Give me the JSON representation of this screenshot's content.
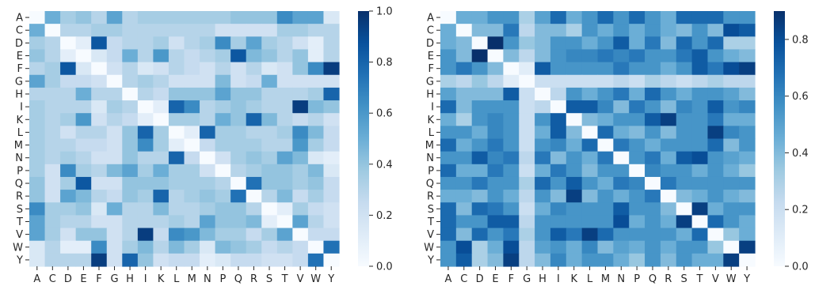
{
  "chart_data": [
    {
      "type": "heatmap",
      "colormap": "Blues",
      "x_labels": [
        "A",
        "C",
        "D",
        "E",
        "F",
        "G",
        "H",
        "I",
        "K",
        "L",
        "M",
        "N",
        "P",
        "Q",
        "R",
        "S",
        "T",
        "V",
        "W",
        "Y"
      ],
      "y_labels": [
        "A",
        "C",
        "D",
        "E",
        "F",
        "G",
        "H",
        "I",
        "K",
        "L",
        "M",
        "N",
        "P",
        "Q",
        "R",
        "S",
        "T",
        "V",
        "W",
        "Y"
      ],
      "vmin": 0.0,
      "vmax": 1.0,
      "colorbar_ticks": [
        "0.0",
        "0.2",
        "0.4",
        "0.6",
        "0.8",
        "1.0"
      ],
      "colorbar_tick_values": [
        0.0,
        0.2,
        0.4,
        0.6,
        0.8,
        1.0
      ],
      "values": [
        [
          0.0,
          0.5,
          0.35,
          0.4,
          0.3,
          0.55,
          0.3,
          0.35,
          0.35,
          0.35,
          0.35,
          0.35,
          0.35,
          0.4,
          0.4,
          0.4,
          0.65,
          0.55,
          0.55,
          0.15
        ],
        [
          0.5,
          0.0,
          0.3,
          0.3,
          0.35,
          0.35,
          0.3,
          0.3,
          0.3,
          0.3,
          0.3,
          0.3,
          0.2,
          0.2,
          0.2,
          0.2,
          0.35,
          0.35,
          0.3,
          0.3
        ],
        [
          0.35,
          0.3,
          0.0,
          0.1,
          0.85,
          0.25,
          0.3,
          0.3,
          0.35,
          0.2,
          0.3,
          0.35,
          0.65,
          0.35,
          0.55,
          0.35,
          0.3,
          0.2,
          0.1,
          0.3
        ],
        [
          0.4,
          0.3,
          0.1,
          0.0,
          0.15,
          0.25,
          0.5,
          0.3,
          0.6,
          0.3,
          0.25,
          0.3,
          0.35,
          0.85,
          0.45,
          0.4,
          0.3,
          0.4,
          0.1,
          0.3
        ],
        [
          0.3,
          0.35,
          0.85,
          0.15,
          0.0,
          0.2,
          0.3,
          0.15,
          0.2,
          0.3,
          0.25,
          0.2,
          0.3,
          0.2,
          0.3,
          0.15,
          0.2,
          0.4,
          0.65,
          0.95
        ],
        [
          0.55,
          0.35,
          0.25,
          0.25,
          0.2,
          0.0,
          0.3,
          0.35,
          0.3,
          0.2,
          0.2,
          0.2,
          0.45,
          0.2,
          0.25,
          0.5,
          0.2,
          0.2,
          0.2,
          0.2
        ],
        [
          0.3,
          0.3,
          0.3,
          0.5,
          0.3,
          0.3,
          0.0,
          0.3,
          0.25,
          0.4,
          0.4,
          0.4,
          0.55,
          0.4,
          0.4,
          0.3,
          0.3,
          0.3,
          0.35,
          0.8
        ],
        [
          0.35,
          0.3,
          0.3,
          0.3,
          0.15,
          0.35,
          0.3,
          0.0,
          0.1,
          0.8,
          0.65,
          0.3,
          0.35,
          0.4,
          0.35,
          0.3,
          0.3,
          0.95,
          0.45,
          0.4
        ],
        [
          0.35,
          0.3,
          0.35,
          0.6,
          0.2,
          0.3,
          0.25,
          0.1,
          0.0,
          0.35,
          0.35,
          0.3,
          0.5,
          0.4,
          0.8,
          0.45,
          0.3,
          0.25,
          0.3,
          0.2
        ],
        [
          0.35,
          0.3,
          0.2,
          0.3,
          0.3,
          0.2,
          0.4,
          0.8,
          0.35,
          0.0,
          0.1,
          0.8,
          0.35,
          0.35,
          0.3,
          0.3,
          0.35,
          0.65,
          0.45,
          0.25
        ],
        [
          0.35,
          0.3,
          0.3,
          0.25,
          0.25,
          0.2,
          0.4,
          0.65,
          0.35,
          0.1,
          0.0,
          0.25,
          0.35,
          0.35,
          0.35,
          0.3,
          0.3,
          0.6,
          0.35,
          0.25
        ],
        [
          0.35,
          0.3,
          0.35,
          0.3,
          0.2,
          0.2,
          0.4,
          0.3,
          0.3,
          0.8,
          0.25,
          0.0,
          0.2,
          0.35,
          0.4,
          0.35,
          0.55,
          0.45,
          0.15,
          0.1
        ],
        [
          0.35,
          0.2,
          0.65,
          0.35,
          0.3,
          0.45,
          0.55,
          0.35,
          0.5,
          0.35,
          0.35,
          0.2,
          0.0,
          0.3,
          0.35,
          0.4,
          0.4,
          0.35,
          0.45,
          0.15
        ],
        [
          0.4,
          0.2,
          0.35,
          0.85,
          0.2,
          0.2,
          0.4,
          0.4,
          0.4,
          0.35,
          0.35,
          0.35,
          0.3,
          0.0,
          0.75,
          0.4,
          0.4,
          0.35,
          0.4,
          0.25
        ],
        [
          0.4,
          0.2,
          0.55,
          0.45,
          0.3,
          0.25,
          0.4,
          0.35,
          0.8,
          0.3,
          0.35,
          0.4,
          0.35,
          0.75,
          0.0,
          0.3,
          0.45,
          0.25,
          0.35,
          0.25
        ],
        [
          0.65,
          0.35,
          0.35,
          0.4,
          0.15,
          0.5,
          0.3,
          0.3,
          0.45,
          0.3,
          0.3,
          0.35,
          0.4,
          0.4,
          0.3,
          0.0,
          0.1,
          0.35,
          0.25,
          0.2
        ],
        [
          0.55,
          0.35,
          0.3,
          0.3,
          0.2,
          0.2,
          0.3,
          0.3,
          0.3,
          0.35,
          0.3,
          0.55,
          0.4,
          0.4,
          0.45,
          0.1,
          0.0,
          0.55,
          0.3,
          0.2
        ],
        [
          0.55,
          0.35,
          0.2,
          0.4,
          0.4,
          0.2,
          0.3,
          0.95,
          0.25,
          0.65,
          0.6,
          0.45,
          0.35,
          0.35,
          0.25,
          0.35,
          0.55,
          0.0,
          0.25,
          0.25
        ],
        [
          0.15,
          0.3,
          0.1,
          0.1,
          0.65,
          0.2,
          0.35,
          0.45,
          0.3,
          0.45,
          0.35,
          0.15,
          0.45,
          0.4,
          0.35,
          0.25,
          0.3,
          0.25,
          0.0,
          0.75
        ],
        [
          0.15,
          0.3,
          0.3,
          0.3,
          0.95,
          0.2,
          0.8,
          0.4,
          0.2,
          0.25,
          0.25,
          0.1,
          0.15,
          0.25,
          0.25,
          0.2,
          0.2,
          0.25,
          0.75,
          0.0
        ]
      ]
    },
    {
      "type": "heatmap",
      "colormap": "Blues",
      "x_labels": [
        "A",
        "C",
        "D",
        "E",
        "F",
        "G",
        "H",
        "I",
        "K",
        "L",
        "M",
        "N",
        "P",
        "Q",
        "R",
        "S",
        "T",
        "V",
        "W",
        "Y"
      ],
      "y_labels": [
        "A",
        "C",
        "D",
        "E",
        "F",
        "G",
        "H",
        "I",
        "K",
        "L",
        "M",
        "N",
        "P",
        "Q",
        "R",
        "S",
        "T",
        "V",
        "W",
        "Y"
      ],
      "vmin": 0.0,
      "vmax": 0.9,
      "colorbar_ticks": [
        "0.0",
        "0.2",
        "0.4",
        "0.6",
        "0.8"
      ],
      "colorbar_tick_values": [
        0.0,
        0.2,
        0.4,
        0.6,
        0.8
      ],
      "values": [
        [
          0.0,
          0.45,
          0.45,
          0.55,
          0.55,
          0.3,
          0.5,
          0.7,
          0.45,
          0.55,
          0.7,
          0.55,
          0.7,
          0.55,
          0.45,
          0.7,
          0.7,
          0.7,
          0.55,
          0.55
        ],
        [
          0.45,
          0.0,
          0.4,
          0.4,
          0.65,
          0.25,
          0.4,
          0.4,
          0.3,
          0.55,
          0.45,
          0.55,
          0.45,
          0.55,
          0.45,
          0.4,
          0.55,
          0.4,
          0.8,
          0.75
        ],
        [
          0.45,
          0.4,
          0.0,
          0.9,
          0.55,
          0.35,
          0.4,
          0.55,
          0.55,
          0.45,
          0.55,
          0.75,
          0.45,
          0.65,
          0.4,
          0.7,
          0.55,
          0.7,
          0.3,
          0.3
        ],
        [
          0.55,
          0.4,
          0.9,
          0.0,
          0.4,
          0.25,
          0.4,
          0.55,
          0.6,
          0.6,
          0.65,
          0.6,
          0.65,
          0.55,
          0.55,
          0.65,
          0.75,
          0.55,
          0.45,
          0.4
        ],
        [
          0.55,
          0.65,
          0.55,
          0.4,
          0.0,
          0.1,
          0.75,
          0.55,
          0.55,
          0.55,
          0.55,
          0.65,
          0.55,
          0.55,
          0.45,
          0.55,
          0.75,
          0.65,
          0.8,
          0.85
        ],
        [
          0.3,
          0.25,
          0.35,
          0.25,
          0.1,
          0.0,
          0.2,
          0.2,
          0.2,
          0.2,
          0.2,
          0.25,
          0.2,
          0.3,
          0.25,
          0.2,
          0.25,
          0.3,
          0.25,
          0.25
        ],
        [
          0.5,
          0.4,
          0.4,
          0.4,
          0.75,
          0.2,
          0.0,
          0.25,
          0.55,
          0.45,
          0.55,
          0.65,
          0.45,
          0.7,
          0.55,
          0.45,
          0.55,
          0.55,
          0.5,
          0.4
        ],
        [
          0.7,
          0.4,
          0.55,
          0.55,
          0.55,
          0.2,
          0.25,
          0.0,
          0.75,
          0.75,
          0.6,
          0.4,
          0.65,
          0.55,
          0.4,
          0.6,
          0.55,
          0.75,
          0.55,
          0.6
        ],
        [
          0.45,
          0.3,
          0.55,
          0.6,
          0.55,
          0.2,
          0.55,
          0.75,
          0.0,
          0.4,
          0.45,
          0.55,
          0.55,
          0.75,
          0.85,
          0.55,
          0.55,
          0.65,
          0.45,
          0.45
        ],
        [
          0.55,
          0.55,
          0.45,
          0.6,
          0.55,
          0.2,
          0.45,
          0.75,
          0.4,
          0.0,
          0.7,
          0.45,
          0.4,
          0.55,
          0.4,
          0.55,
          0.55,
          0.85,
          0.6,
          0.55
        ],
        [
          0.7,
          0.45,
          0.55,
          0.65,
          0.55,
          0.2,
          0.55,
          0.6,
          0.45,
          0.7,
          0.0,
          0.65,
          0.55,
          0.45,
          0.55,
          0.55,
          0.55,
          0.7,
          0.4,
          0.55
        ],
        [
          0.55,
          0.55,
          0.75,
          0.6,
          0.65,
          0.25,
          0.65,
          0.4,
          0.55,
          0.45,
          0.65,
          0.0,
          0.55,
          0.65,
          0.45,
          0.75,
          0.8,
          0.55,
          0.5,
          0.45
        ],
        [
          0.7,
          0.45,
          0.45,
          0.65,
          0.55,
          0.2,
          0.45,
          0.65,
          0.55,
          0.4,
          0.55,
          0.55,
          0.0,
          0.6,
          0.55,
          0.55,
          0.45,
          0.55,
          0.45,
          0.35
        ],
        [
          0.55,
          0.55,
          0.65,
          0.55,
          0.55,
          0.3,
          0.7,
          0.55,
          0.75,
          0.55,
          0.45,
          0.65,
          0.6,
          0.0,
          0.65,
          0.55,
          0.55,
          0.55,
          0.55,
          0.55
        ],
        [
          0.45,
          0.45,
          0.4,
          0.55,
          0.45,
          0.25,
          0.55,
          0.4,
          0.85,
          0.4,
          0.55,
          0.45,
          0.55,
          0.65,
          0.0,
          0.4,
          0.45,
          0.55,
          0.45,
          0.4
        ],
        [
          0.7,
          0.4,
          0.7,
          0.65,
          0.55,
          0.2,
          0.45,
          0.6,
          0.55,
          0.55,
          0.55,
          0.75,
          0.55,
          0.55,
          0.4,
          0.0,
          0.85,
          0.45,
          0.55,
          0.55
        ],
        [
          0.7,
          0.55,
          0.55,
          0.75,
          0.75,
          0.25,
          0.55,
          0.55,
          0.55,
          0.55,
          0.55,
          0.8,
          0.45,
          0.55,
          0.45,
          0.85,
          0.0,
          0.7,
          0.55,
          0.45
        ],
        [
          0.7,
          0.4,
          0.7,
          0.55,
          0.65,
          0.3,
          0.55,
          0.75,
          0.65,
          0.85,
          0.7,
          0.55,
          0.55,
          0.55,
          0.55,
          0.45,
          0.7,
          0.0,
          0.35,
          0.45
        ],
        [
          0.55,
          0.8,
          0.3,
          0.45,
          0.8,
          0.25,
          0.5,
          0.55,
          0.45,
          0.6,
          0.4,
          0.5,
          0.45,
          0.55,
          0.45,
          0.55,
          0.55,
          0.35,
          0.0,
          0.85
        ],
        [
          0.55,
          0.75,
          0.3,
          0.4,
          0.85,
          0.25,
          0.4,
          0.6,
          0.45,
          0.55,
          0.55,
          0.45,
          0.35,
          0.55,
          0.4,
          0.55,
          0.45,
          0.45,
          0.85,
          0.0
        ]
      ]
    }
  ]
}
